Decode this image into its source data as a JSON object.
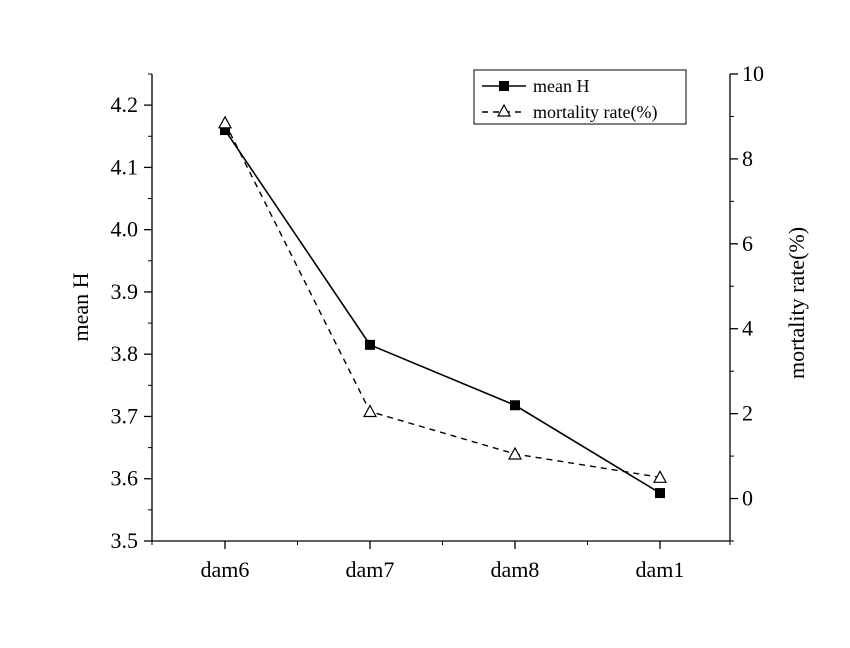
{
  "chart_data": {
    "type": "line",
    "title": "",
    "xlabel": "",
    "categories": [
      "dam6",
      "dam7",
      "dam8",
      "dam1"
    ],
    "y_left": {
      "label": "mean H",
      "range": [
        3.5,
        4.25
      ],
      "ticks": [
        "3.5",
        "3.6",
        "3.7",
        "3.8",
        "3.9",
        "4.0",
        "4.1",
        "4.2"
      ]
    },
    "y_right": {
      "label": "mortality rate(%)",
      "range": [
        -1,
        10
      ],
      "ticks": [
        "0",
        "2",
        "4",
        "6",
        "8",
        "10"
      ]
    },
    "series": [
      {
        "name": "mean H",
        "axis": "left",
        "values": [
          4.16,
          3.815,
          3.718,
          3.577
        ],
        "line_style": "solid",
        "marker": "filled-square",
        "color": "#000000"
      },
      {
        "name": "mortality rate(%)",
        "axis": "right",
        "values": [
          8.85,
          2.05,
          1.05,
          0.5
        ],
        "line_style": "dashed",
        "marker": "open-triangle",
        "color": "#000000"
      }
    ],
    "legend": {
      "position": "top-right"
    },
    "grid": false
  }
}
